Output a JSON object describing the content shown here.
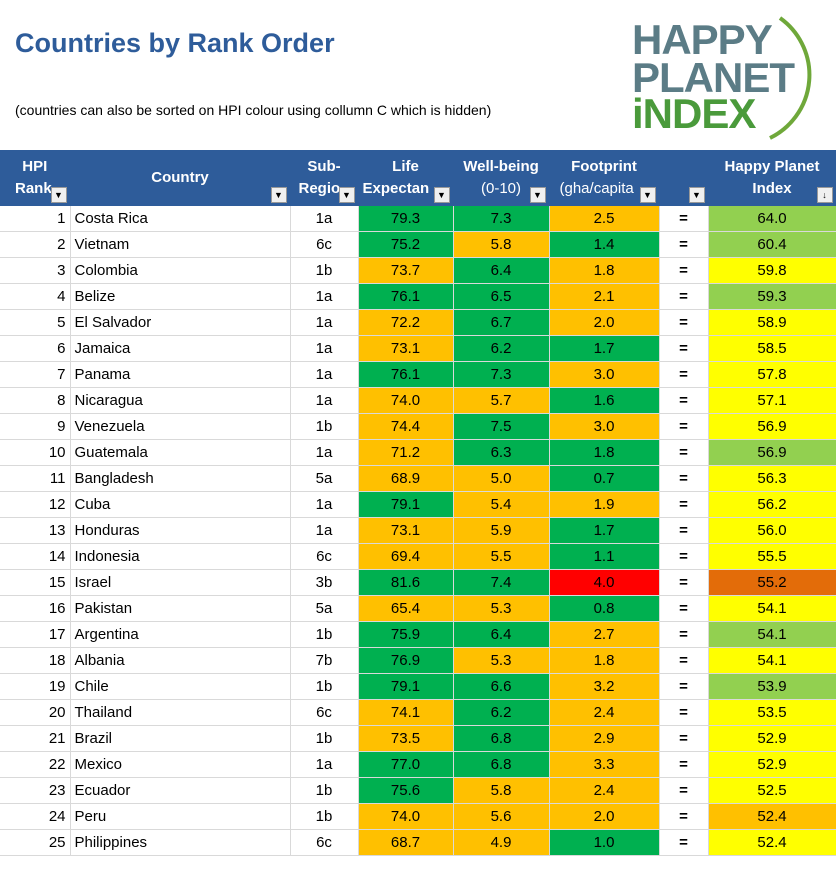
{
  "header": {
    "title": "Countries by Rank Order",
    "subtitle": "(countries can also be sorted on HPI colour using collumn C which is hidden)",
    "logo": {
      "line1": "HAPPY",
      "line2": "PLANET",
      "line3": "iNDEX"
    }
  },
  "columns": {
    "rank": [
      "HPI",
      "Rank"
    ],
    "country": [
      "Country"
    ],
    "subregion": [
      "Sub-",
      "Regio"
    ],
    "life": [
      "Life",
      "Expectan"
    ],
    "wellbeing": [
      "Well-being",
      "(0-10)"
    ],
    "footprint": [
      "Footprint",
      "(gha/capita"
    ],
    "eq": [
      ""
    ],
    "hpi": [
      "Happy Planet",
      "Index"
    ]
  },
  "colors": {
    "header_bg": "#2E5C9A",
    "good": "#00B050",
    "mid": "#FFC000",
    "bad": "#FF0000",
    "hpi_green": "#92D050",
    "hpi_yellow": "#FFFF00",
    "hpi_orange": "#FFC000",
    "hpi_red": "#E36C09"
  },
  "rows": [
    {
      "rank": "1",
      "country": "Costa Rica",
      "sub": "1a",
      "life": "79.3",
      "lc": "g",
      "wb": "7.3",
      "wc": "g",
      "fp": "2.5",
      "fc": "o",
      "eq": "=",
      "hpi": "64.0",
      "hc": "hg"
    },
    {
      "rank": "2",
      "country": "Vietnam",
      "sub": "6c",
      "life": "75.2",
      "lc": "g",
      "wb": "5.8",
      "wc": "o",
      "fp": "1.4",
      "fc": "g",
      "eq": "=",
      "hpi": "60.4",
      "hc": "hg"
    },
    {
      "rank": "3",
      "country": "Colombia",
      "sub": "1b",
      "life": "73.7",
      "lc": "o",
      "wb": "6.4",
      "wc": "g",
      "fp": "1.8",
      "fc": "o",
      "eq": "=",
      "hpi": "59.8",
      "hc": "hy"
    },
    {
      "rank": "4",
      "country": "Belize",
      "sub": "1a",
      "life": "76.1",
      "lc": "g",
      "wb": "6.5",
      "wc": "g",
      "fp": "2.1",
      "fc": "o",
      "eq": "=",
      "hpi": "59.3",
      "hc": "hg"
    },
    {
      "rank": "5",
      "country": "El Salvador",
      "sub": "1a",
      "life": "72.2",
      "lc": "o",
      "wb": "6.7",
      "wc": "g",
      "fp": "2.0",
      "fc": "o",
      "eq": "=",
      "hpi": "58.9",
      "hc": "hy"
    },
    {
      "rank": "6",
      "country": "Jamaica",
      "sub": "1a",
      "life": "73.1",
      "lc": "o",
      "wb": "6.2",
      "wc": "g",
      "fp": "1.7",
      "fc": "g",
      "eq": "=",
      "hpi": "58.5",
      "hc": "hy"
    },
    {
      "rank": "7",
      "country": "Panama",
      "sub": "1a",
      "life": "76.1",
      "lc": "g",
      "wb": "7.3",
      "wc": "g",
      "fp": "3.0",
      "fc": "o",
      "eq": "=",
      "hpi": "57.8",
      "hc": "hy"
    },
    {
      "rank": "8",
      "country": "Nicaragua",
      "sub": "1a",
      "life": "74.0",
      "lc": "o",
      "wb": "5.7",
      "wc": "o",
      "fp": "1.6",
      "fc": "g",
      "eq": "=",
      "hpi": "57.1",
      "hc": "hy"
    },
    {
      "rank": "9",
      "country": "Venezuela",
      "sub": "1b",
      "life": "74.4",
      "lc": "o",
      "wb": "7.5",
      "wc": "g",
      "fp": "3.0",
      "fc": "o",
      "eq": "=",
      "hpi": "56.9",
      "hc": "hy"
    },
    {
      "rank": "10",
      "country": "Guatemala",
      "sub": "1a",
      "life": "71.2",
      "lc": "o",
      "wb": "6.3",
      "wc": "g",
      "fp": "1.8",
      "fc": "g",
      "eq": "=",
      "hpi": "56.9",
      "hc": "hg"
    },
    {
      "rank": "11",
      "country": "Bangladesh",
      "sub": "5a",
      "life": "68.9",
      "lc": "o",
      "wb": "5.0",
      "wc": "o",
      "fp": "0.7",
      "fc": "g",
      "eq": "=",
      "hpi": "56.3",
      "hc": "hy"
    },
    {
      "rank": "12",
      "country": "Cuba",
      "sub": "1a",
      "life": "79.1",
      "lc": "g",
      "wb": "5.4",
      "wc": "o",
      "fp": "1.9",
      "fc": "o",
      "eq": "=",
      "hpi": "56.2",
      "hc": "hy"
    },
    {
      "rank": "13",
      "country": "Honduras",
      "sub": "1a",
      "life": "73.1",
      "lc": "o",
      "wb": "5.9",
      "wc": "o",
      "fp": "1.7",
      "fc": "g",
      "eq": "=",
      "hpi": "56.0",
      "hc": "hy"
    },
    {
      "rank": "14",
      "country": "Indonesia",
      "sub": "6c",
      "life": "69.4",
      "lc": "o",
      "wb": "5.5",
      "wc": "o",
      "fp": "1.1",
      "fc": "g",
      "eq": "=",
      "hpi": "55.5",
      "hc": "hy"
    },
    {
      "rank": "15",
      "country": "Israel",
      "sub": "3b",
      "life": "81.6",
      "lc": "g",
      "wb": "7.4",
      "wc": "g",
      "fp": "4.0",
      "fc": "r",
      "eq": "=",
      "hpi": "55.2",
      "hc": "hr"
    },
    {
      "rank": "16",
      "country": "Pakistan",
      "sub": "5a",
      "life": "65.4",
      "lc": "o",
      "wb": "5.3",
      "wc": "o",
      "fp": "0.8",
      "fc": "g",
      "eq": "=",
      "hpi": "54.1",
      "hc": "hy"
    },
    {
      "rank": "17",
      "country": "Argentina",
      "sub": "1b",
      "life": "75.9",
      "lc": "g",
      "wb": "6.4",
      "wc": "g",
      "fp": "2.7",
      "fc": "o",
      "eq": "=",
      "hpi": "54.1",
      "hc": "hg"
    },
    {
      "rank": "18",
      "country": "Albania",
      "sub": "7b",
      "life": "76.9",
      "lc": "g",
      "wb": "5.3",
      "wc": "o",
      "fp": "1.8",
      "fc": "o",
      "eq": "=",
      "hpi": "54.1",
      "hc": "hy"
    },
    {
      "rank": "19",
      "country": "Chile",
      "sub": "1b",
      "life": "79.1",
      "lc": "g",
      "wb": "6.6",
      "wc": "g",
      "fp": "3.2",
      "fc": "o",
      "eq": "=",
      "hpi": "53.9",
      "hc": "hg"
    },
    {
      "rank": "20",
      "country": "Thailand",
      "sub": "6c",
      "life": "74.1",
      "lc": "o",
      "wb": "6.2",
      "wc": "g",
      "fp": "2.4",
      "fc": "o",
      "eq": "=",
      "hpi": "53.5",
      "hc": "hy"
    },
    {
      "rank": "21",
      "country": "Brazil",
      "sub": "1b",
      "life": "73.5",
      "lc": "o",
      "wb": "6.8",
      "wc": "g",
      "fp": "2.9",
      "fc": "o",
      "eq": "=",
      "hpi": "52.9",
      "hc": "hy"
    },
    {
      "rank": "22",
      "country": "Mexico",
      "sub": "1a",
      "life": "77.0",
      "lc": "g",
      "wb": "6.8",
      "wc": "g",
      "fp": "3.3",
      "fc": "o",
      "eq": "=",
      "hpi": "52.9",
      "hc": "hy"
    },
    {
      "rank": "23",
      "country": "Ecuador",
      "sub": "1b",
      "life": "75.6",
      "lc": "g",
      "wb": "5.8",
      "wc": "o",
      "fp": "2.4",
      "fc": "o",
      "eq": "=",
      "hpi": "52.5",
      "hc": "hy"
    },
    {
      "rank": "24",
      "country": "Peru",
      "sub": "1b",
      "life": "74.0",
      "lc": "o",
      "wb": "5.6",
      "wc": "o",
      "fp": "2.0",
      "fc": "o",
      "eq": "=",
      "hpi": "52.4",
      "hc": "ho"
    },
    {
      "rank": "25",
      "country": "Philippines",
      "sub": "6c",
      "life": "68.7",
      "lc": "o",
      "wb": "4.9",
      "wc": "o",
      "fp": "1.0",
      "fc": "g",
      "eq": "=",
      "hpi": "52.4",
      "hc": "hy"
    }
  ]
}
